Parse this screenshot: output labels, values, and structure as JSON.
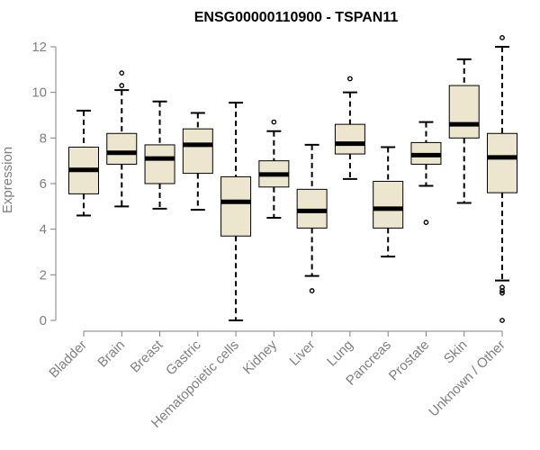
{
  "chart_data": {
    "type": "boxplot",
    "title": "ENSG00000110900 - TSPAN11",
    "xlabel": "",
    "ylabel": "Expression",
    "ylim": [
      0,
      12
    ],
    "yticks": [
      0,
      2,
      4,
      6,
      8,
      10,
      12
    ],
    "grid": false,
    "legend": "none",
    "colors": {
      "box_fill": "#ede6cf",
      "box_stroke": "#000000",
      "median": "#000000",
      "axis": "#808080",
      "tick_text": "#808080",
      "title": "#000000"
    },
    "categories": [
      "Bladder",
      "Brain",
      "Breast",
      "Gastric",
      "Hematopoietic cells",
      "Kidney",
      "Liver",
      "Lung",
      "Pancreas",
      "Prostate",
      "Skin",
      "Unknown / Other"
    ],
    "series": [
      {
        "name": "Bladder",
        "whisker_low": 4.6,
        "q1": 5.55,
        "median": 6.6,
        "q3": 7.6,
        "whisker_high": 9.2,
        "outliers": []
      },
      {
        "name": "Brain",
        "whisker_low": 5.0,
        "q1": 6.85,
        "median": 7.35,
        "q3": 8.2,
        "whisker_high": 10.1,
        "outliers": [
          10.3,
          10.85
        ]
      },
      {
        "name": "Breast",
        "whisker_low": 4.9,
        "q1": 6.0,
        "median": 7.1,
        "q3": 7.7,
        "whisker_high": 9.6,
        "outliers": []
      },
      {
        "name": "Gastric",
        "whisker_low": 4.85,
        "q1": 6.45,
        "median": 7.7,
        "q3": 8.4,
        "whisker_high": 9.1,
        "outliers": []
      },
      {
        "name": "Hematopoietic cells",
        "whisker_low": 0.0,
        "q1": 3.7,
        "median": 5.2,
        "q3": 6.3,
        "whisker_high": 9.55,
        "outliers": []
      },
      {
        "name": "Kidney",
        "whisker_low": 4.5,
        "q1": 5.85,
        "median": 6.4,
        "q3": 7.0,
        "whisker_high": 8.3,
        "outliers": [
          8.7
        ]
      },
      {
        "name": "Liver",
        "whisker_low": 1.95,
        "q1": 4.05,
        "median": 4.8,
        "q3": 5.75,
        "whisker_high": 7.7,
        "outliers": [
          1.3
        ]
      },
      {
        "name": "Lung",
        "whisker_low": 6.2,
        "q1": 7.3,
        "median": 7.75,
        "q3": 8.6,
        "whisker_high": 10.0,
        "outliers": [
          10.6
        ]
      },
      {
        "name": "Pancreas",
        "whisker_low": 2.8,
        "q1": 4.05,
        "median": 4.9,
        "q3": 6.1,
        "whisker_high": 7.6,
        "outliers": []
      },
      {
        "name": "Prostate",
        "whisker_low": 5.9,
        "q1": 6.85,
        "median": 7.25,
        "q3": 7.8,
        "whisker_high": 8.7,
        "outliers": [
          4.3
        ]
      },
      {
        "name": "Skin",
        "whisker_low": 5.15,
        "q1": 8.0,
        "median": 8.6,
        "q3": 10.3,
        "whisker_high": 11.45,
        "outliers": []
      },
      {
        "name": "Unknown / Other",
        "whisker_low": 1.75,
        "q1": 5.6,
        "median": 7.15,
        "q3": 8.2,
        "whisker_high": 12.0,
        "outliers": [
          12.4,
          1.45,
          1.3,
          1.2,
          0.0
        ]
      }
    ]
  }
}
